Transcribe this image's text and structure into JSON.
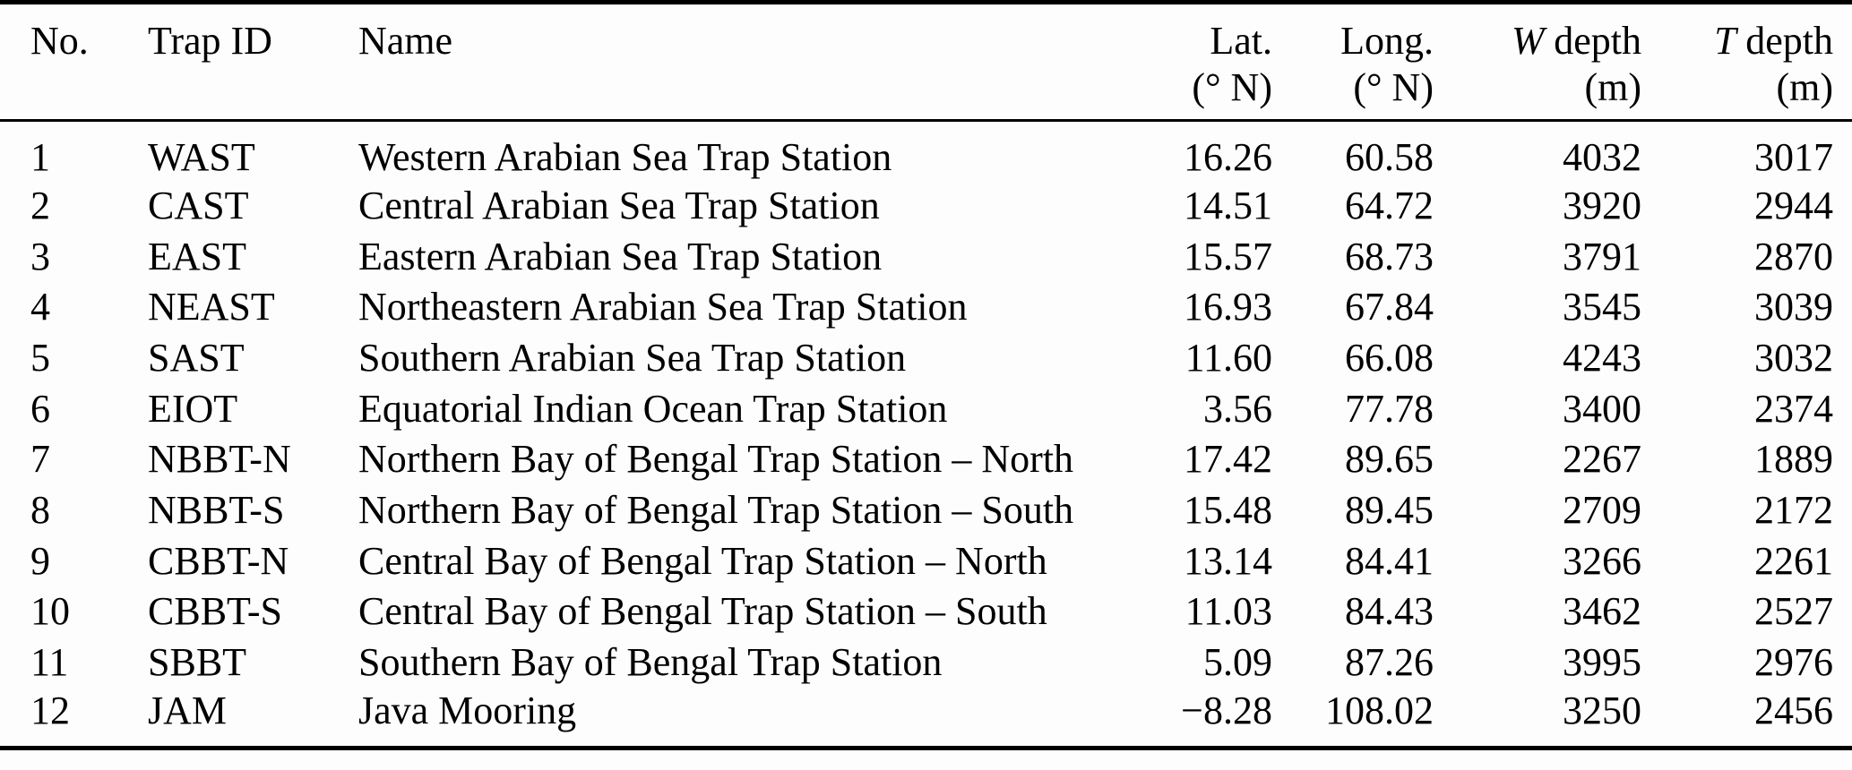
{
  "table": {
    "columns": [
      {
        "label": "No."
      },
      {
        "label": "Trap ID"
      },
      {
        "label": "Name"
      },
      {
        "label": "Lat.",
        "sublabel": "(° N)"
      },
      {
        "label": "Long.",
        "sublabel": "(° N)"
      },
      {
        "prefix": "W",
        "rest": "depth",
        "sublabel": "(m)"
      },
      {
        "prefix": "T",
        "rest": "depth",
        "sublabel": "(m)"
      }
    ],
    "rows": [
      {
        "no": "1",
        "trap_id": "WAST",
        "name": "Western Arabian Sea Trap Station",
        "lat": "16.26",
        "long": "60.58",
        "w_depth": "4032",
        "t_depth": "3017"
      },
      {
        "no": "2",
        "trap_id": "CAST",
        "name": "Central Arabian Sea Trap Station",
        "lat": "14.51",
        "long": "64.72",
        "w_depth": "3920",
        "t_depth": "2944"
      },
      {
        "no": "3",
        "trap_id": "EAST",
        "name": "Eastern Arabian Sea Trap Station",
        "lat": "15.57",
        "long": "68.73",
        "w_depth": "3791",
        "t_depth": "2870"
      },
      {
        "no": "4",
        "trap_id": "NEAST",
        "name": "Northeastern Arabian Sea Trap Station",
        "lat": "16.93",
        "long": "67.84",
        "w_depth": "3545",
        "t_depth": "3039"
      },
      {
        "no": "5",
        "trap_id": "SAST",
        "name": "Southern Arabian Sea Trap Station",
        "lat": "11.60",
        "long": "66.08",
        "w_depth": "4243",
        "t_depth": "3032"
      },
      {
        "no": "6",
        "trap_id": "EIOT",
        "name": "Equatorial Indian Ocean Trap Station",
        "lat": "3.56",
        "long": "77.78",
        "w_depth": "3400",
        "t_depth": "2374"
      },
      {
        "no": "7",
        "trap_id": "NBBT-N",
        "name": "Northern Bay of Bengal Trap Station – North",
        "lat": "17.42",
        "long": "89.65",
        "w_depth": "2267",
        "t_depth": "1889"
      },
      {
        "no": "8",
        "trap_id": "NBBT-S",
        "name": "Northern Bay of Bengal Trap Station – South",
        "lat": "15.48",
        "long": "89.45",
        "w_depth": "2709",
        "t_depth": "2172"
      },
      {
        "no": "9",
        "trap_id": "CBBT-N",
        "name": "Central Bay of Bengal Trap Station – North",
        "lat": "13.14",
        "long": "84.41",
        "w_depth": "3266",
        "t_depth": "2261"
      },
      {
        "no": "10",
        "trap_id": "CBBT-S",
        "name": "Central Bay of Bengal Trap Station – South",
        "lat": "11.03",
        "long": "84.43",
        "w_depth": "3462",
        "t_depth": "2527"
      },
      {
        "no": "11",
        "trap_id": "SBBT",
        "name": "Southern Bay of Bengal Trap Station",
        "lat": "5.09",
        "long": "87.26",
        "w_depth": "3995",
        "t_depth": "2976"
      },
      {
        "no": "12",
        "trap_id": "JAM",
        "name": "Java Mooring",
        "lat": "−8.28",
        "long": "108.02",
        "w_depth": "3250",
        "t_depth": "2456"
      }
    ]
  }
}
